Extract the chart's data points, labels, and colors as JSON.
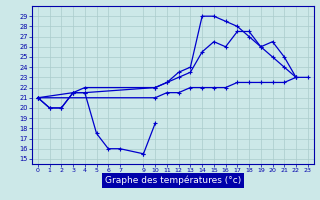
{
  "xlabel": "Graphe des températures (°c)",
  "bg_color": "#cce8e8",
  "grid_color": "#aacccc",
  "line_color": "#0000cc",
  "x_ticks": [
    0,
    1,
    2,
    3,
    4,
    5,
    6,
    7,
    9,
    10,
    11,
    12,
    13,
    14,
    15,
    16,
    17,
    18,
    19,
    20,
    21,
    22,
    23
  ],
  "y_ticks": [
    15,
    16,
    17,
    18,
    19,
    20,
    21,
    22,
    23,
    24,
    25,
    26,
    27,
    28,
    29
  ],
  "ylim": [
    14.5,
    30.0
  ],
  "xlim": [
    -0.5,
    23.5
  ],
  "series": [
    {
      "x": [
        0,
        1,
        2,
        3,
        4,
        5,
        6,
        7,
        9
      ],
      "y": [
        21.0,
        20.0,
        20.0,
        21.5,
        21.5,
        17.5,
        16.0,
        16.0,
        15.5
      ]
    },
    {
      "x": [
        9,
        10
      ],
      "y": [
        15.5,
        18.5
      ]
    },
    {
      "x": [
        0,
        1,
        2,
        3,
        4,
        10,
        11,
        12,
        13,
        14,
        15,
        16,
        17,
        18,
        19,
        20,
        21,
        22
      ],
      "y": [
        21.0,
        20.0,
        20.0,
        21.5,
        21.5,
        22.0,
        22.5,
        23.5,
        24.0,
        29.0,
        29.0,
        28.5,
        28.0,
        27.0,
        26.0,
        25.0,
        24.0,
        23.0
      ]
    },
    {
      "x": [
        0,
        3,
        4,
        10,
        11,
        12,
        13,
        14,
        15,
        16,
        17,
        18,
        19,
        20,
        21,
        22
      ],
      "y": [
        21.0,
        21.5,
        22.0,
        22.0,
        22.5,
        23.0,
        23.5,
        25.5,
        26.5,
        26.0,
        27.5,
        27.5,
        26.0,
        26.5,
        25.0,
        23.0
      ]
    },
    {
      "x": [
        0,
        10,
        11,
        12,
        13,
        14,
        15,
        16,
        17,
        18,
        19,
        20,
        21,
        22,
        23
      ],
      "y": [
        21.0,
        21.0,
        21.5,
        21.5,
        22.0,
        22.0,
        22.0,
        22.0,
        22.5,
        22.5,
        22.5,
        22.5,
        22.5,
        23.0,
        23.0
      ]
    }
  ]
}
